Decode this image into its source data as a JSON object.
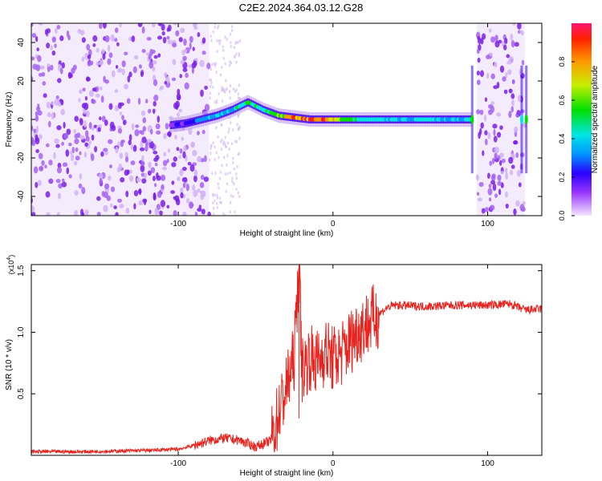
{
  "title": "C2E2.2024.364.03.12.G28",
  "colors": {
    "spectrum_cold": "#4a00e0",
    "spectrum_light": "#c9a8f5",
    "snr_line": "#e8231e",
    "axis": "#000000"
  },
  "chart_data": [
    {
      "type": "heatmap",
      "xlabel": "Height of straight line (km)",
      "ylabel": "Frequency (Hz)",
      "xlim": [
        -195,
        135
      ],
      "ylim": [
        -50,
        50
      ],
      "xticks": [
        -100,
        0,
        100
      ],
      "yticks": [
        -40,
        -20,
        0,
        20,
        40
      ],
      "colorbar": {
        "label": "Normalized spectral amplitude",
        "range": [
          0.0,
          1.0
        ],
        "ticks": [
          "0.0",
          "0.2",
          "0.4",
          "0.6",
          "0.8"
        ]
      },
      "ridge": {
        "x": [
          -105,
          -95,
          -85,
          -75,
          -65,
          -55,
          -45,
          -35,
          -25,
          -15,
          -5,
          5,
          15,
          40,
          70,
          90
        ],
        "frequency": [
          -3,
          -2,
          0,
          2,
          5,
          9,
          5,
          2,
          1,
          0,
          0,
          0,
          0,
          0,
          0,
          0
        ],
        "amplitude": [
          0.2,
          0.25,
          0.35,
          0.4,
          0.45,
          0.6,
          0.5,
          0.7,
          0.85,
          0.95,
          0.9,
          0.7,
          0.5,
          0.45,
          0.45,
          0.4
        ]
      },
      "noise_regions": [
        [
          -195,
          -80
        ],
        [
          93,
          124
        ]
      ]
    },
    {
      "type": "line",
      "xlabel": "Height of straight line (km)",
      "ylabel": "SNR (10 * v/v)",
      "multiplier_label": "(x10",
      "multiplier_exp": "4",
      "xlim": [
        -195,
        135
      ],
      "ylim": [
        0,
        1.55
      ],
      "xticks": [
        -100,
        0,
        100
      ],
      "yticks": [
        "0.5",
        "1.0",
        "1.5"
      ],
      "series": [
        {
          "x": [
            -195,
            -160,
            -120,
            -100,
            -90,
            -80,
            -70,
            -60,
            -50,
            -40,
            -35,
            -30,
            -25,
            -22,
            -20,
            -15,
            -10,
            -5,
            0,
            5,
            10,
            15,
            20,
            25,
            30,
            35,
            40,
            60,
            80,
            100,
            115,
            120,
            125,
            135
          ],
          "values": [
            0.03,
            0.03,
            0.04,
            0.05,
            0.08,
            0.12,
            0.14,
            0.12,
            0.07,
            0.12,
            0.35,
            0.55,
            0.8,
            1.55,
            0.7,
            0.8,
            0.75,
            0.85,
            0.78,
            0.82,
            0.9,
            1.0,
            1.05,
            1.1,
            1.15,
            1.2,
            1.22,
            1.21,
            1.22,
            1.22,
            1.23,
            1.2,
            1.18,
            1.19
          ]
        }
      ]
    }
  ]
}
